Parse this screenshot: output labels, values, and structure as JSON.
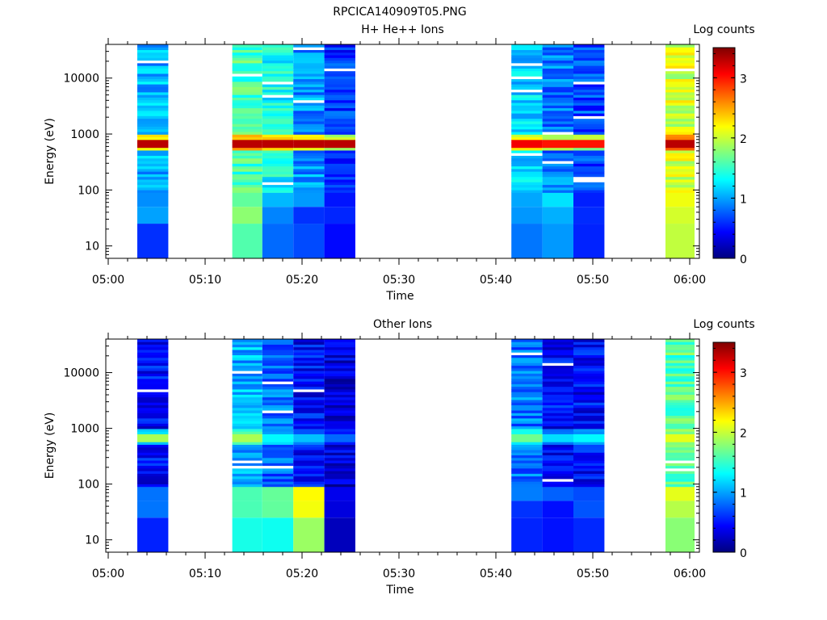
{
  "figure_title": "RPCICA140909T05.PNG",
  "colors": {
    "colormap": [
      "#00007f",
      "#0000ff",
      "#007fff",
      "#00ffff",
      "#7fff7f",
      "#ffff00",
      "#ff7f00",
      "#ff0000",
      "#7f0000"
    ]
  },
  "chart_data": [
    {
      "type": "heatmap",
      "title": "H+ He++ Ions",
      "xlabel": "Time",
      "ylabel": "Energy (eV)",
      "x_ticks": [
        "05:00",
        "05:10",
        "05:20",
        "05:30",
        "05:40",
        "05:50",
        "06:00"
      ],
      "x_range_minutes": [
        0,
        60.5
      ],
      "y_scale": "log",
      "y_ticks": [
        "10",
        "100",
        "1000",
        "10000"
      ],
      "y_range": [
        6,
        40000
      ],
      "colorbar": {
        "label": "Log counts",
        "ticks": [
          "0",
          "1",
          "2",
          "3"
        ],
        "range": [
          0,
          3.5
        ]
      },
      "columns": [
        {
          "start_min": 3.0,
          "end_min": 6.2,
          "base": 1.05,
          "peak": 3.3,
          "low": 0.75
        },
        {
          "start_min": 12.8,
          "end_min": 15.9,
          "base": 1.55,
          "peak": 3.3,
          "low": 1.55
        },
        {
          "start_min": 15.9,
          "end_min": 19.1,
          "base": 1.35,
          "peak": 3.3,
          "low": 0.9
        },
        {
          "start_min": 19.1,
          "end_min": 22.3,
          "base": 0.95,
          "peak": 3.3,
          "low": 0.6
        },
        {
          "start_min": 22.3,
          "end_min": 25.5,
          "base": 0.6,
          "peak": 3.3,
          "low": 0.35
        },
        {
          "start_min": 41.6,
          "end_min": 44.8,
          "base": 1.15,
          "peak": 3.1,
          "low": 0.9
        },
        {
          "start_min": 44.8,
          "end_min": 48.0,
          "base": 0.85,
          "peak": 3.0,
          "low": 0.95
        },
        {
          "start_min": 48.0,
          "end_min": 51.2,
          "base": 0.7,
          "peak": 3.0,
          "low": 0.45
        },
        {
          "start_min": 57.5,
          "end_min": 60.5,
          "base": 2.05,
          "peak": 3.3,
          "low": 1.85
        }
      ]
    },
    {
      "type": "heatmap",
      "title": "Other Ions",
      "xlabel": "Time",
      "ylabel": "Energy (eV)",
      "x_ticks": [
        "05:00",
        "05:10",
        "05:20",
        "05:30",
        "05:40",
        "05:50",
        "06:00"
      ],
      "x_range_minutes": [
        0,
        60.5
      ],
      "y_scale": "log",
      "y_ticks": [
        "10",
        "100",
        "1000",
        "10000"
      ],
      "y_range": [
        6,
        40000
      ],
      "colorbar": {
        "label": "Log counts",
        "ticks": [
          "0",
          "1",
          "2",
          "3"
        ],
        "range": [
          0,
          3.5
        ]
      },
      "columns": [
        {
          "start_min": 3.0,
          "end_min": 6.2,
          "base": 0.45,
          "peak": 1.9,
          "low": 0.65
        },
        {
          "start_min": 12.8,
          "end_min": 15.9,
          "base": 1.05,
          "peak": 1.9,
          "low": 1.3
        },
        {
          "start_min": 15.9,
          "end_min": 19.1,
          "base": 0.8,
          "peak": 1.3,
          "low": 1.5
        },
        {
          "start_min": 19.1,
          "end_min": 22.3,
          "base": 0.45,
          "peak": 1.1,
          "low": 1.95
        },
        {
          "start_min": 22.3,
          "end_min": 25.5,
          "base": 0.3,
          "peak": 0.8,
          "low": 0.2
        },
        {
          "start_min": 41.6,
          "end_min": 44.8,
          "base": 0.85,
          "peak": 1.7,
          "low": 0.5
        },
        {
          "start_min": 44.8,
          "end_min": 48.0,
          "base": 0.45,
          "peak": 1.2,
          "low": 0.5
        },
        {
          "start_min": 48.0,
          "end_min": 51.2,
          "base": 0.45,
          "peak": 1.3,
          "low": 0.5
        },
        {
          "start_min": 57.5,
          "end_min": 60.5,
          "base": 1.6,
          "peak": 2.1,
          "low": 1.9
        }
      ]
    }
  ]
}
